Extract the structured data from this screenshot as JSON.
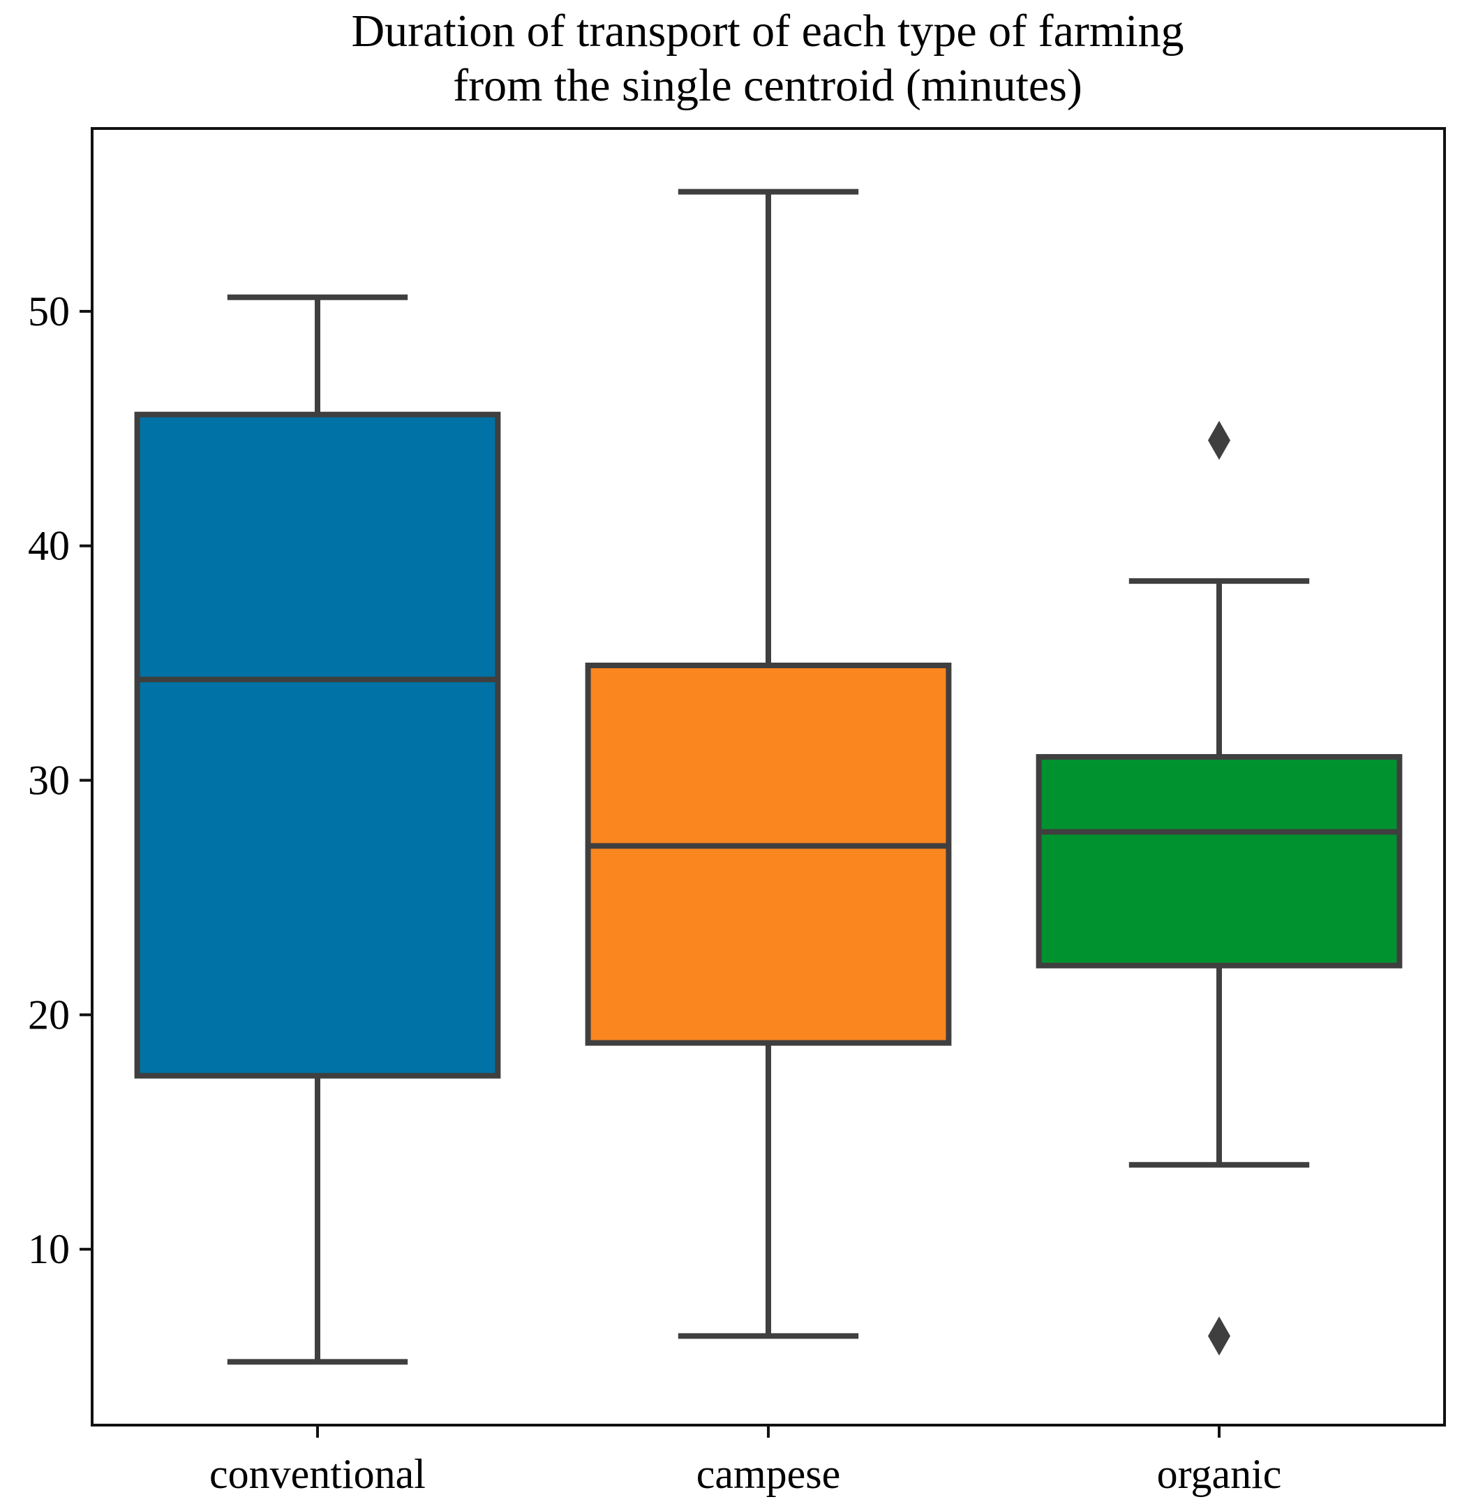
{
  "chart_data": {
    "type": "box",
    "title": "Duration of transport of each type of farming\nfrom the single centroid (minutes)",
    "title_lines": [
      "Duration of transport of each type of farming",
      "from the single centroid (minutes)"
    ],
    "xlabel": "",
    "ylabel": "",
    "ylim": [
      2.5,
      57.8
    ],
    "yticks": [
      10,
      20,
      30,
      40,
      50
    ],
    "grid": false,
    "categories": [
      "conventional",
      "campese",
      "organic"
    ],
    "series": [
      {
        "name": "conventional",
        "color": "#0072a5",
        "whisker_low": 5.2,
        "q1": 17.4,
        "median": 34.3,
        "q3": 45.6,
        "whisker_high": 50.6,
        "outliers": []
      },
      {
        "name": "campese",
        "color": "#fa8620",
        "whisker_low": 6.3,
        "q1": 18.8,
        "median": 27.2,
        "q3": 34.9,
        "whisker_high": 55.1,
        "outliers": []
      },
      {
        "name": "organic",
        "color": "#00922f",
        "whisker_low": 13.6,
        "q1": 22.1,
        "median": 27.8,
        "q3": 31.0,
        "whisker_high": 38.5,
        "outliers": [
          44.5,
          6.3
        ]
      }
    ]
  }
}
